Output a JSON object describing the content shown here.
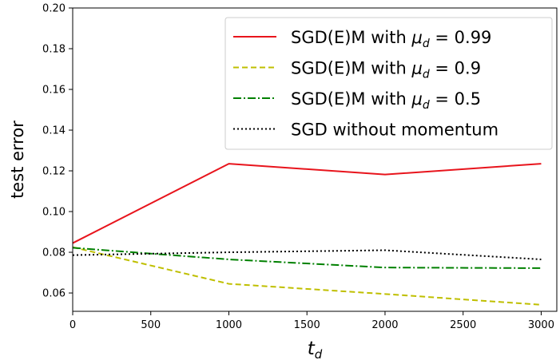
{
  "chart_data": {
    "type": "line",
    "xlabel": "t_d",
    "ylabel": "test error",
    "xlim": [
      0,
      3100
    ],
    "ylim": [
      0.051,
      0.2
    ],
    "xticks": [
      0,
      500,
      1000,
      1500,
      2000,
      2500,
      3000
    ],
    "yticks": [
      0.06,
      0.08,
      0.1,
      0.12,
      0.14,
      0.16,
      0.18,
      0.2
    ],
    "xtick_labels": [
      "0",
      "500",
      "1000",
      "1500",
      "2000",
      "2500",
      "3000"
    ],
    "ytick_labels": [
      "0.06",
      "0.08",
      "0.10",
      "0.12",
      "0.14",
      "0.16",
      "0.18",
      "0.20"
    ],
    "grid": false,
    "legend_position": "top-right",
    "x": [
      0,
      1000,
      2000,
      3000
    ],
    "series": [
      {
        "name_prefix": "SGD(E)M with ",
        "mu_symbol": "μ",
        "mu_sub": "d",
        "mu_value": " = 0.99",
        "values": [
          0.0845,
          0.1235,
          0.1182,
          0.1235
        ],
        "color": "#e8141c",
        "dash": "solid"
      },
      {
        "name_prefix": "SGD(E)M with ",
        "mu_symbol": "μ",
        "mu_sub": "d",
        "mu_value": " = 0.9",
        "values": [
          0.0825,
          0.0645,
          0.0595,
          0.0542
        ],
        "color": "#bfbf00",
        "dash": "dashed"
      },
      {
        "name_prefix": "SGD(E)M with ",
        "mu_symbol": "μ",
        "mu_sub": "d",
        "mu_value": " = 0.5",
        "values": [
          0.0822,
          0.0765,
          0.0725,
          0.0722
        ],
        "color": "#008000",
        "dash": "dashdot"
      },
      {
        "name_prefix": "SGD without momentum",
        "values": [
          0.0786,
          0.08,
          0.081,
          0.0765
        ],
        "color": "#000000",
        "dash": "dotted"
      }
    ]
  }
}
